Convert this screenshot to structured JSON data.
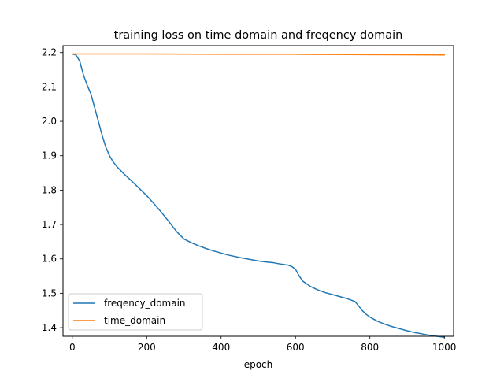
{
  "chart_data": {
    "type": "line",
    "title": "training loss on time domain and freqency domain",
    "xlabel": "epoch",
    "ylabel": "",
    "xlim": [
      -25,
      1025
    ],
    "ylim": [
      1.375,
      2.22
    ],
    "xticks": [
      0,
      200,
      400,
      600,
      800,
      1000
    ],
    "yticks": [
      1.4,
      1.5,
      1.6,
      1.7,
      1.8,
      1.9,
      2.0,
      2.1,
      2.2
    ],
    "legend": "lower-left",
    "grid": false,
    "series": [
      {
        "name": "freqency_domain",
        "color": "#1f77b4",
        "x": [
          0,
          10,
          20,
          30,
          40,
          50,
          60,
          70,
          80,
          90,
          100,
          110,
          120,
          140,
          160,
          180,
          200,
          220,
          240,
          260,
          280,
          300,
          320,
          340,
          360,
          380,
          400,
          420,
          450,
          480,
          500,
          520,
          540,
          560,
          580,
          590,
          600,
          610,
          620,
          640,
          660,
          680,
          700,
          720,
          740,
          760,
          770,
          780,
          790,
          800,
          820,
          840,
          860,
          880,
          900,
          920,
          940,
          960,
          980,
          1000
        ],
        "values": [
          2.196,
          2.193,
          2.175,
          2.135,
          2.105,
          2.08,
          2.04,
          2.0,
          1.96,
          1.925,
          1.9,
          1.882,
          1.868,
          1.846,
          1.826,
          1.805,
          1.784,
          1.76,
          1.735,
          1.708,
          1.68,
          1.658,
          1.647,
          1.638,
          1.63,
          1.623,
          1.617,
          1.611,
          1.604,
          1.598,
          1.594,
          1.591,
          1.589,
          1.585,
          1.582,
          1.578,
          1.57,
          1.55,
          1.535,
          1.52,
          1.51,
          1.502,
          1.496,
          1.49,
          1.484,
          1.476,
          1.463,
          1.449,
          1.439,
          1.431,
          1.419,
          1.41,
          1.403,
          1.397,
          1.391,
          1.386,
          1.382,
          1.378,
          1.375,
          1.372
        ]
      },
      {
        "name": "time_domain",
        "color": "#ff7f0e",
        "x": [
          0,
          200,
          400,
          600,
          800,
          1000
        ],
        "values": [
          2.196,
          2.196,
          2.195,
          2.195,
          2.194,
          2.193
        ]
      }
    ]
  }
}
